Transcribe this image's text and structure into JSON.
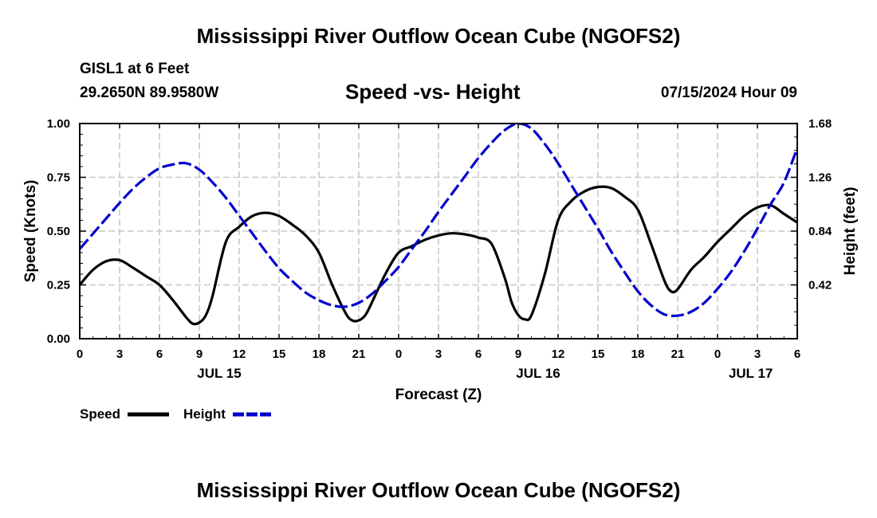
{
  "header": {
    "title": "Mississippi River Outflow Ocean Cube (NGOFS2)",
    "station": "GISL1 at 6 Feet",
    "coords": "29.2650N  89.9580W",
    "subtitle": "Speed -vs- Height",
    "datetime": "07/15/2024 Hour 09"
  },
  "footer": {
    "title": "Mississippi River Outflow Ocean Cube (NGOFS2)"
  },
  "chart_data": {
    "type": "line",
    "title": "Speed -vs- Height",
    "xlabel": "Forecast (Z)",
    "ylabel": "Speed (Knots)",
    "ylabel_right": "Height (feet)",
    "x_hours_range": [
      0,
      54
    ],
    "x_ticks": [
      "0",
      "3",
      "6",
      "9",
      "12",
      "15",
      "18",
      "21",
      "0",
      "3",
      "6",
      "9",
      "12",
      "15",
      "18",
      "21",
      "0",
      "3",
      "6"
    ],
    "x_dates": [
      {
        "label": "JUL 15",
        "hour": 10.5
      },
      {
        "label": "JUL 16",
        "hour": 34.5
      },
      {
        "label": "JUL 17",
        "hour": 50.5
      }
    ],
    "ylim": [
      0,
      1.0
    ],
    "y_ticks": [
      "0.00",
      "0.25",
      "0.50",
      "0.75",
      "1.00"
    ],
    "ylim_right": [
      0,
      1.68
    ],
    "y_ticks_right": [
      "0.42",
      "0.84",
      "1.26",
      "1.68"
    ],
    "legend": [
      {
        "label": "Speed",
        "color": "#000000",
        "style": "solid"
      },
      {
        "label": "Height",
        "color": "#0000cc",
        "style": "dashed"
      }
    ],
    "series": [
      {
        "name": "Speed",
        "axis": "left",
        "color": "#000000",
        "x": [
          0,
          1,
          2,
          3,
          4,
          5,
          6,
          7,
          8,
          8.5,
          9,
          9.5,
          10,
          11,
          12,
          13,
          14,
          15,
          16,
          17,
          18,
          19,
          20,
          20.5,
          21,
          21.5,
          22,
          23,
          24,
          25,
          26,
          27,
          28,
          29,
          30,
          31,
          32,
          32.5,
          33,
          33.5,
          34,
          35,
          36,
          37,
          38,
          39,
          40,
          41,
          42,
          43,
          44,
          44.5,
          45,
          46,
          47,
          48,
          49,
          50,
          51,
          52,
          53,
          54
        ],
        "values": [
          0.25,
          0.32,
          0.36,
          0.365,
          0.33,
          0.29,
          0.25,
          0.18,
          0.1,
          0.07,
          0.075,
          0.11,
          0.2,
          0.45,
          0.52,
          0.57,
          0.585,
          0.57,
          0.53,
          0.48,
          0.4,
          0.25,
          0.12,
          0.085,
          0.085,
          0.11,
          0.17,
          0.3,
          0.4,
          0.43,
          0.46,
          0.48,
          0.49,
          0.485,
          0.47,
          0.44,
          0.28,
          0.17,
          0.11,
          0.09,
          0.11,
          0.3,
          0.55,
          0.64,
          0.685,
          0.705,
          0.7,
          0.66,
          0.6,
          0.44,
          0.27,
          0.22,
          0.23,
          0.32,
          0.38,
          0.45,
          0.51,
          0.57,
          0.61,
          0.62,
          0.58,
          0.54
        ]
      },
      {
        "name": "Height",
        "axis": "right",
        "color": "#0000cc",
        "x": [
          0,
          1,
          2,
          3,
          4,
          5,
          6,
          7,
          8,
          9,
          10,
          11,
          12,
          13,
          14,
          15,
          16,
          17,
          18,
          19,
          20,
          21,
          22,
          23,
          24,
          25,
          26,
          27,
          28,
          29,
          30,
          31,
          32,
          33,
          34,
          35,
          36,
          37,
          38,
          39,
          40,
          41,
          42,
          43,
          44,
          45,
          46,
          47,
          48,
          49,
          50,
          51,
          52,
          53,
          54
        ],
        "values": [
          0.7,
          0.82,
          0.94,
          1.06,
          1.17,
          1.26,
          1.33,
          1.36,
          1.37,
          1.32,
          1.22,
          1.1,
          0.96,
          0.82,
          0.68,
          0.55,
          0.45,
          0.36,
          0.3,
          0.26,
          0.25,
          0.28,
          0.35,
          0.45,
          0.56,
          0.7,
          0.84,
          0.99,
          1.13,
          1.27,
          1.41,
          1.53,
          1.63,
          1.68,
          1.64,
          1.52,
          1.37,
          1.2,
          1.03,
          0.86,
          0.68,
          0.52,
          0.37,
          0.26,
          0.19,
          0.18,
          0.21,
          0.28,
          0.39,
          0.52,
          0.68,
          0.86,
          1.05,
          1.22,
          1.49
        ]
      }
    ]
  }
}
